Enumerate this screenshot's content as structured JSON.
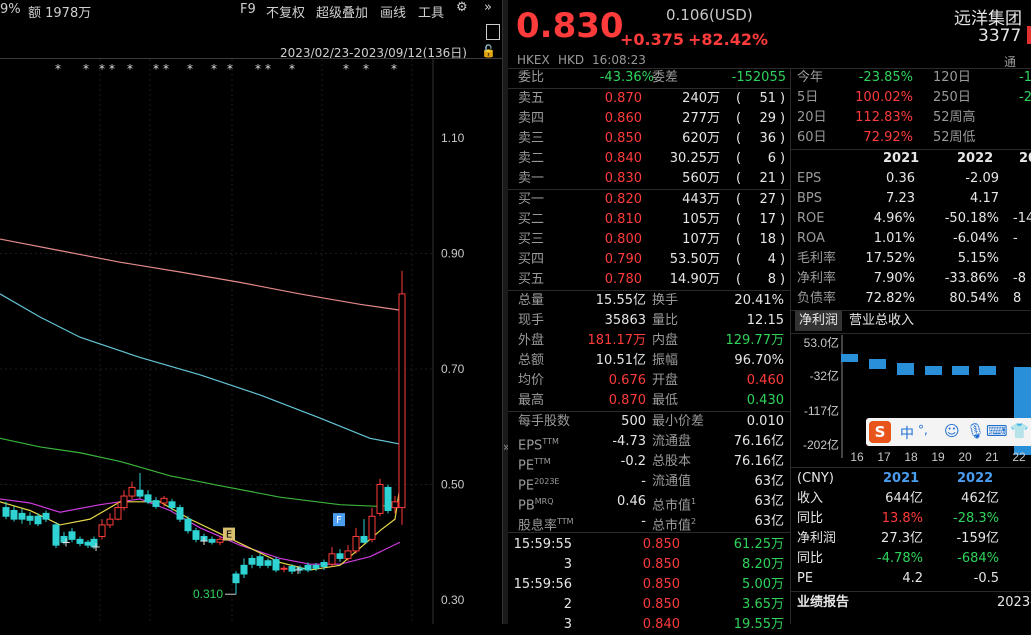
{
  "toolbar": {
    "left_partial": "9%",
    "amount": "额 1978万",
    "f9": "F9",
    "fuquan": "不复权",
    "overlay": "超级叠加",
    "draw": "画线",
    "tools": "工具",
    "more": "»"
  },
  "chart": {
    "date_range": "2023/02/23-2023/09/12(136日)",
    "y_ticks": [
      "1.10",
      "0.90",
      "0.70",
      "0.50",
      "0.30"
    ],
    "min_label": "0.310",
    "markers": {
      "e": "E",
      "f": "F"
    },
    "stars": "*   *   * *   *   * *   *   *   * *   *   *   *   *",
    "colors": {
      "ma_pink": "#e48a8a",
      "ma_cyan": "#63c5d6",
      "ma_green": "#3bb33b",
      "ma_magenta": "#d03be0",
      "ma_yellow": "#e6d84a",
      "up": "#ff3b3b",
      "down": "#2fd3d3"
    }
  },
  "chart_data": {
    "type": "candlestick",
    "ylim": [
      0.28,
      1.22
    ],
    "y_ticks": [
      1.1,
      0.9,
      0.7,
      0.5,
      0.3
    ],
    "min_price": 0.31,
    "last_close": 0.83,
    "high": 0.87
  },
  "header": {
    "price": "0.830",
    "change": "+0.375",
    "change_pct": "+82.42%",
    "prev_usd": "0.106(USD)",
    "name": "远洋集团",
    "code": "3377",
    "exchange": "HKEX",
    "currency": "HKD",
    "time": "16:08:23",
    "tong": "通"
  },
  "weibi": {
    "label1": "委比",
    "val1": "-43.36%",
    "label2": "委差",
    "val2": "-152055"
  },
  "asks": [
    {
      "label": "卖五",
      "price": "0.870",
      "vol": "240万",
      "n": "51"
    },
    {
      "label": "卖四",
      "price": "0.860",
      "vol": "277万",
      "n": "29"
    },
    {
      "label": "卖三",
      "price": "0.850",
      "vol": "620万",
      "n": "36"
    },
    {
      "label": "卖二",
      "price": "0.840",
      "vol": "30.25万",
      "n": "6"
    },
    {
      "label": "卖一",
      "price": "0.830",
      "vol": "560万",
      "n": "21"
    }
  ],
  "bids": [
    {
      "label": "买一",
      "price": "0.820",
      "vol": "443万",
      "n": "27"
    },
    {
      "label": "买二",
      "price": "0.810",
      "vol": "105万",
      "n": "17"
    },
    {
      "label": "买三",
      "price": "0.800",
      "vol": "107万",
      "n": "18"
    },
    {
      "label": "买四",
      "price": "0.790",
      "vol": "53.50万",
      "n": "4"
    },
    {
      "label": "买五",
      "price": "0.780",
      "vol": "14.90万",
      "n": "8"
    }
  ],
  "stats": [
    {
      "l1": "总量",
      "v1": "15.55亿",
      "c1": "white",
      "l2": "换手",
      "v2": "20.41%",
      "c2": "white"
    },
    {
      "l1": "现手",
      "v1": "35863",
      "c1": "white",
      "l2": "量比",
      "v2": "12.15",
      "c2": "white"
    },
    {
      "l1": "外盘",
      "v1": "181.17万",
      "c1": "red",
      "l2": "内盘",
      "v2": "129.77万",
      "c2": "green"
    },
    {
      "l1": "总额",
      "v1": "10.51亿",
      "c1": "white",
      "l2": "振幅",
      "v2": "96.70%",
      "c2": "white"
    },
    {
      "l1": "均价",
      "v1": "0.676",
      "c1": "red",
      "l2": "开盘",
      "v2": "0.460",
      "c2": "red"
    },
    {
      "l1": "最高",
      "v1": "0.870",
      "c1": "red",
      "l2": "最低",
      "v2": "0.430",
      "c2": "green"
    }
  ],
  "stats2": [
    {
      "l1": "每手股数",
      "v1": "500",
      "l2": "最小价差",
      "v2": "0.010"
    },
    {
      "l1": "EPS",
      "sup1": "TTM",
      "v1": "-4.73",
      "l2": "流通盘",
      "v2": "76.16亿"
    },
    {
      "l1": "PE",
      "sup1": "TTM",
      "v1": "-0.2",
      "l2": "总股本",
      "v2": "76.16亿"
    },
    {
      "l1": "PE",
      "sup1": "2023E",
      "v1": "-",
      "l2": "流通值",
      "v2": "63亿"
    },
    {
      "l1": "PB",
      "sup1": "MRQ",
      "v1": "0.46",
      "l2": "总市值",
      "sup2": "1",
      "v2": "63亿"
    },
    {
      "l1": "股息率",
      "sup1": "TTM",
      "v1": "-",
      "l2": "总市值",
      "sup2": "2",
      "v2": "63亿"
    }
  ],
  "ticks": [
    {
      "time": "15:59:55",
      "price": "0.850",
      "vol": "61.25万"
    },
    {
      "time": "3",
      "price": "0.850",
      "vol": "8.20万"
    },
    {
      "time": "15:59:56",
      "price": "0.850",
      "vol": "5.00万"
    },
    {
      "time": "2",
      "price": "0.850",
      "vol": "3.65万"
    },
    {
      "time": "3",
      "price": "0.840",
      "vol": "19.55万"
    }
  ],
  "perf": [
    {
      "l1": "今年",
      "v1": "-23.85%",
      "c1": "green",
      "l2": "120日",
      "v2": "-1"
    },
    {
      "l1": "5日",
      "v1": "100.02%",
      "c1": "red",
      "l2": "250日",
      "v2": "-2"
    },
    {
      "l1": "20日",
      "v1": "112.83%",
      "c1": "red",
      "l2": "52周高",
      "v2": ""
    },
    {
      "l1": "60日",
      "v1": "72.92%",
      "c1": "red",
      "l2": "52周低",
      "v2": ""
    }
  ],
  "fin": {
    "years": [
      "2021",
      "2022",
      "20"
    ],
    "rows": [
      {
        "label": "EPS",
        "a": "0.36",
        "b": "-2.09",
        "c": ""
      },
      {
        "label": "BPS",
        "a": "7.23",
        "b": "4.17",
        "c": ""
      },
      {
        "label": "ROE",
        "a": "4.96%",
        "b": "-50.18%",
        "c": "-14"
      },
      {
        "label": "ROA",
        "a": "1.01%",
        "b": "-6.04%",
        "c": "-"
      },
      {
        "label": "毛利率",
        "a": "17.52%",
        "b": "5.15%",
        "c": ""
      },
      {
        "label": "净利率",
        "a": "7.90%",
        "b": "-33.86%",
        "c": "-8"
      },
      {
        "label": "负债率",
        "a": "72.82%",
        "b": "80.54%",
        "c": "8"
      }
    ]
  },
  "mini_tabs": {
    "t1": "净利润",
    "t2": "营业总收入"
  },
  "mini_chart": {
    "y": [
      "53.0亿",
      "-32亿",
      "-117亿",
      "-202亿"
    ],
    "x": [
      "16",
      "17",
      "18",
      "19",
      "20",
      "21",
      "22"
    ]
  },
  "ime": {
    "zh": "中",
    "punct": "°,"
  },
  "cny": {
    "label": "(CNY)",
    "y1": "2021",
    "y2": "2022",
    "rows": [
      {
        "label": "收入",
        "a": "644亿",
        "ac": "white",
        "b": "462亿",
        "bc": "white"
      },
      {
        "label": "同比",
        "a": "13.8%",
        "ac": "red",
        "b": "-28.3%",
        "bc": "green"
      },
      {
        "label": "净利润",
        "a": "27.3亿",
        "ac": "white",
        "b": "-159亿",
        "bc": "white"
      },
      {
        "label": "同比",
        "a": "-4.78%",
        "ac": "green",
        "b": "-684%",
        "bc": "green"
      },
      {
        "label": "PE",
        "a": "4.2",
        "ac": "white",
        "b": "-0.5",
        "bc": "white"
      }
    ]
  },
  "report": {
    "label": "业绩报告",
    "date": "2023-"
  }
}
